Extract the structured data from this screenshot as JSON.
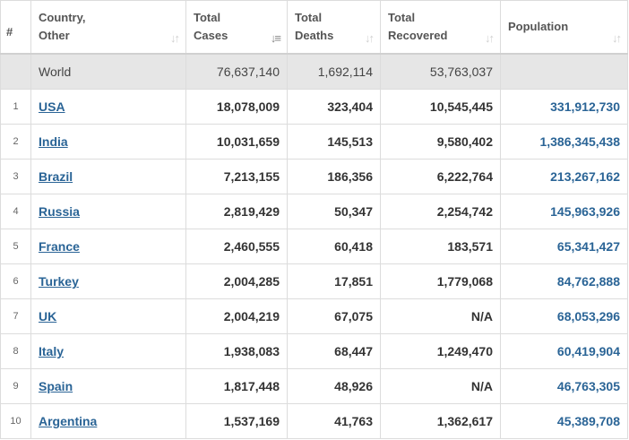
{
  "headers": {
    "rank": "#",
    "country_line1": "Country,",
    "country_line2": "Other",
    "cases_line1": "Total",
    "cases_line2": "Cases",
    "deaths_line1": "Total",
    "deaths_line2": "Deaths",
    "recovered_line1": "Total",
    "recovered_line2": "Recovered",
    "population": "Population"
  },
  "world": {
    "country": "World",
    "cases": "76,637,140",
    "deaths": "1,692,114",
    "recovered": "53,763,037",
    "population": ""
  },
  "rows": [
    {
      "rank": "1",
      "country": "USA",
      "cases": "18,078,009",
      "deaths": "323,404",
      "recovered": "10,545,445",
      "population": "331,912,730"
    },
    {
      "rank": "2",
      "country": "India",
      "cases": "10,031,659",
      "deaths": "145,513",
      "recovered": "9,580,402",
      "population": "1,386,345,438"
    },
    {
      "rank": "3",
      "country": "Brazil",
      "cases": "7,213,155",
      "deaths": "186,356",
      "recovered": "6,222,764",
      "population": "213,267,162"
    },
    {
      "rank": "4",
      "country": "Russia",
      "cases": "2,819,429",
      "deaths": "50,347",
      "recovered": "2,254,742",
      "population": "145,963,926"
    },
    {
      "rank": "5",
      "country": "France",
      "cases": "2,460,555",
      "deaths": "60,418",
      "recovered": "183,571",
      "population": "65,341,427"
    },
    {
      "rank": "6",
      "country": "Turkey",
      "cases": "2,004,285",
      "deaths": "17,851",
      "recovered": "1,779,068",
      "population": "84,762,888"
    },
    {
      "rank": "7",
      "country": "UK",
      "cases": "2,004,219",
      "deaths": "67,075",
      "recovered": "N/A",
      "population": "68,053,296"
    },
    {
      "rank": "8",
      "country": "Italy",
      "cases": "1,938,083",
      "deaths": "68,447",
      "recovered": "1,249,470",
      "population": "60,419,904"
    },
    {
      "rank": "9",
      "country": "Spain",
      "cases": "1,817,448",
      "deaths": "48,926",
      "recovered": "N/A",
      "population": "46,763,305"
    },
    {
      "rank": "10",
      "country": "Argentina",
      "cases": "1,537,169",
      "deaths": "41,763",
      "recovered": "1,362,617",
      "population": "45,389,708"
    }
  ],
  "icons": {
    "sort_default": "sort-arrows-icon",
    "sort_active": "sort-desc-icon"
  },
  "colors": {
    "link": "#2a6496",
    "world_row_bg": "#e6e6e6",
    "border": "#dcdcdc"
  }
}
